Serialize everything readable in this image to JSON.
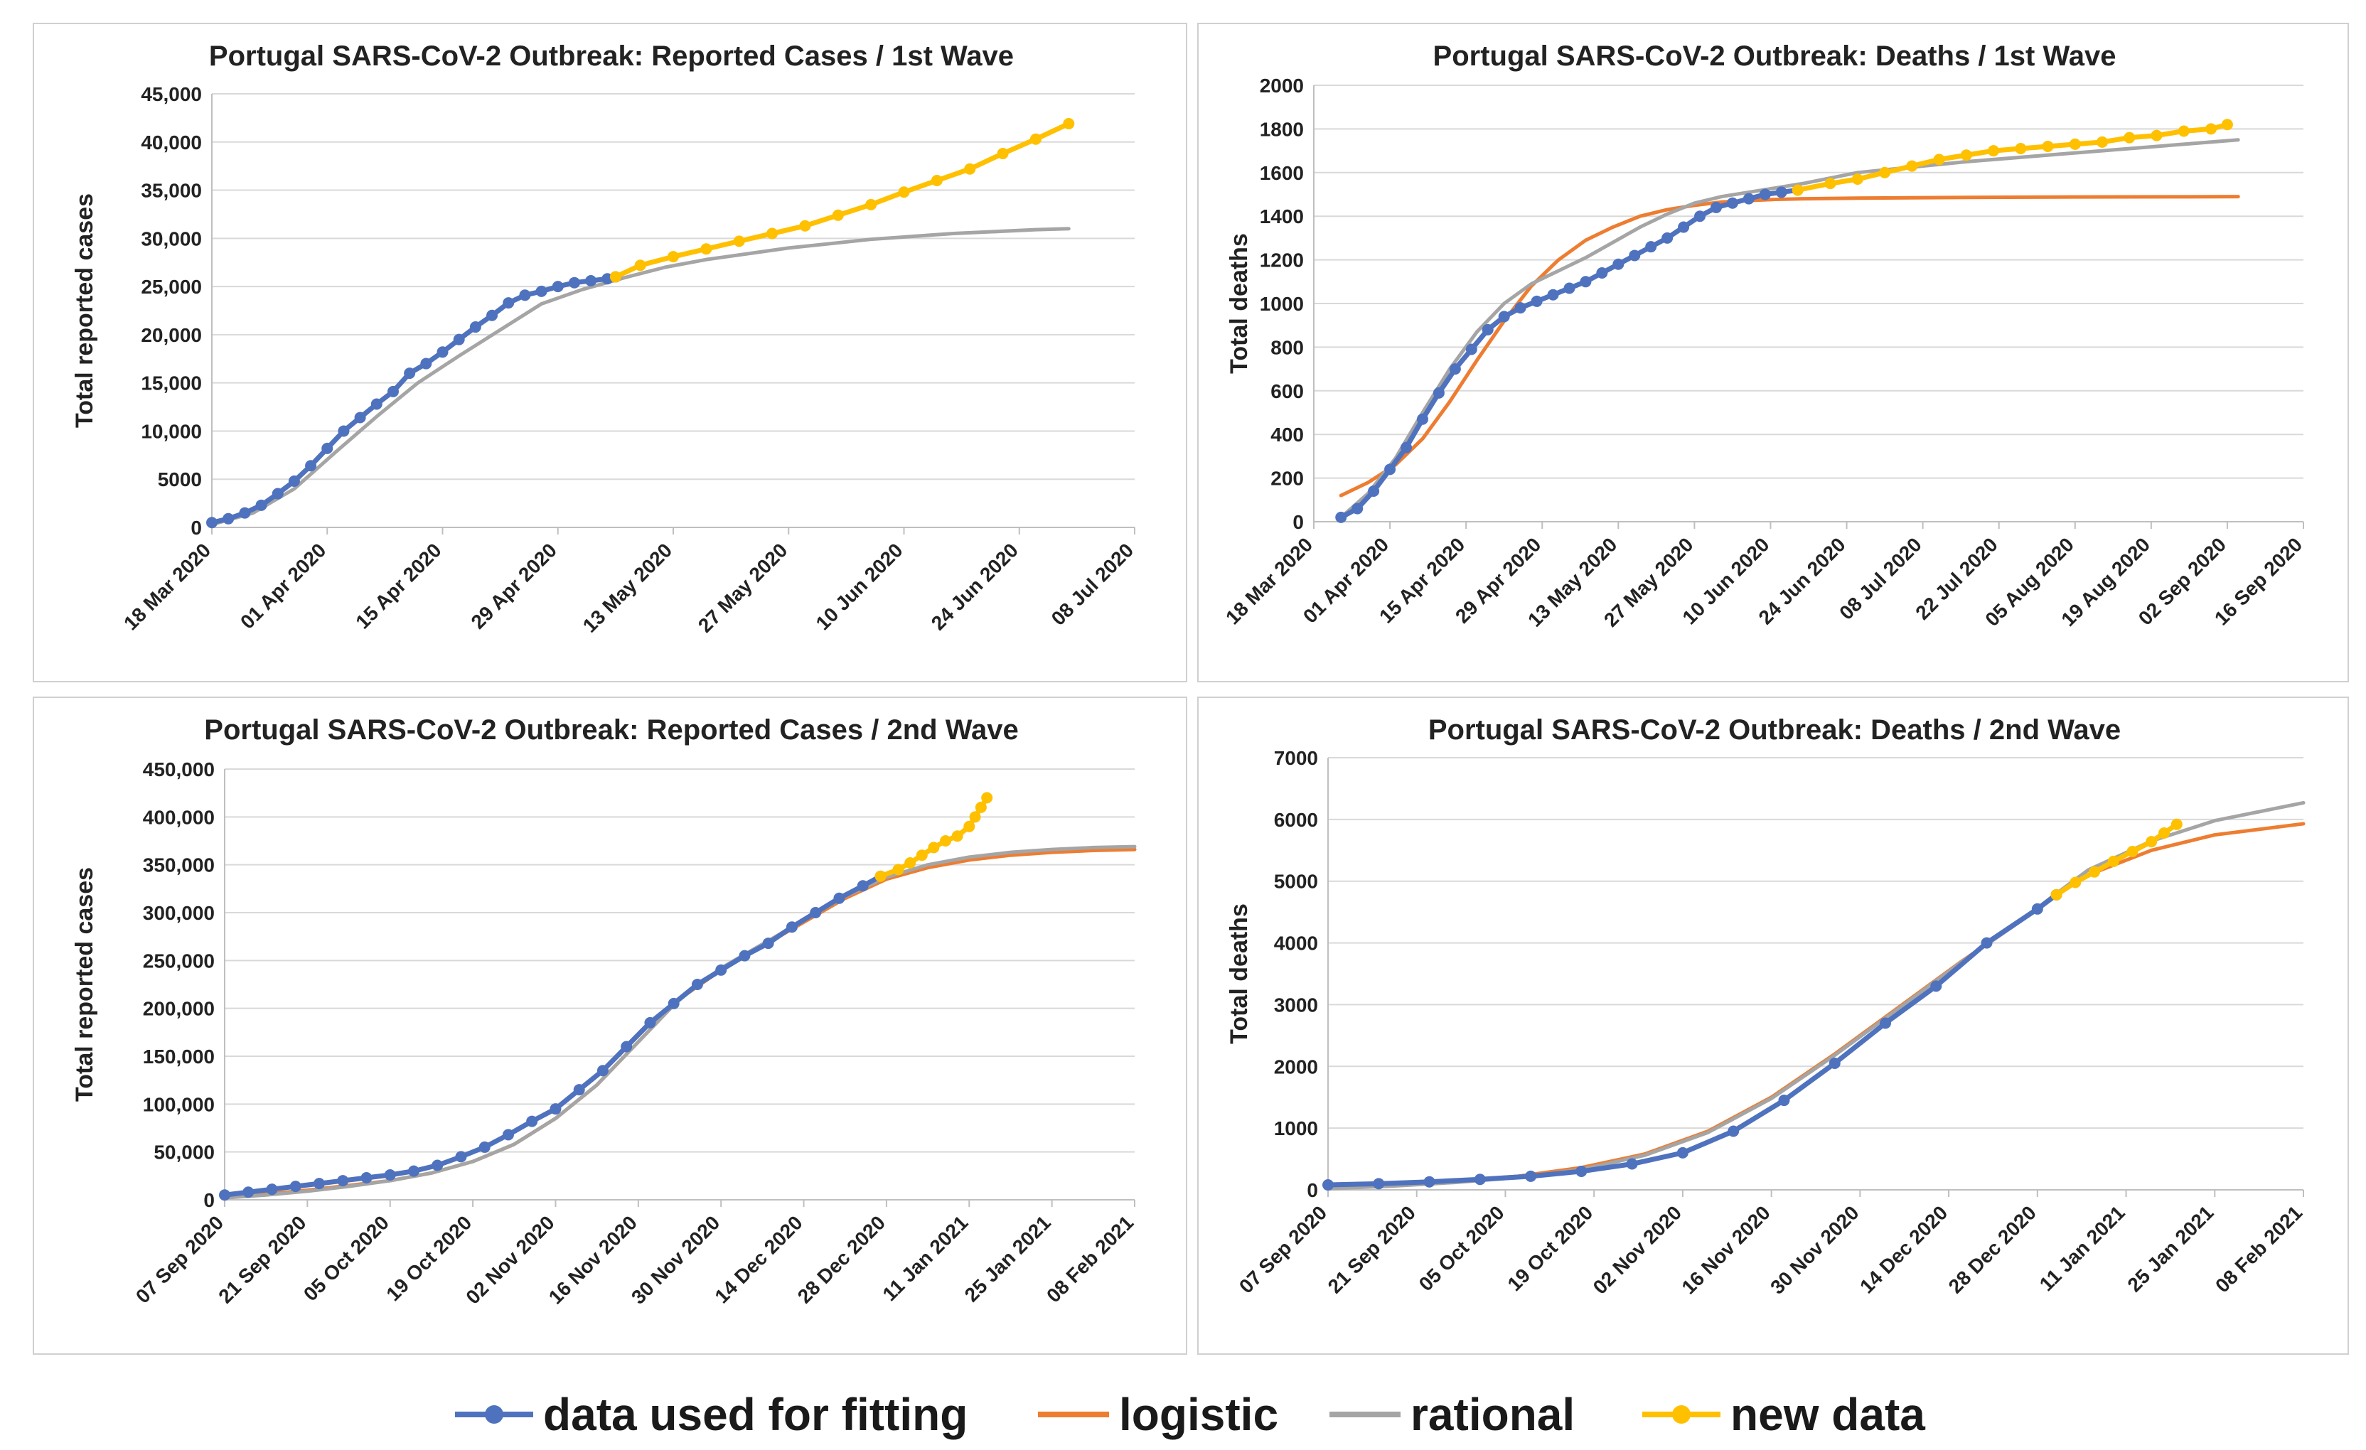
{
  "colors": {
    "fit": "#4f72be",
    "logistic": "#ed7d31",
    "rational": "#a5a5a5",
    "new": "#ffc000",
    "grid": "#d9d9d9",
    "axis": "#bfbfbf"
  },
  "legend": [
    {
      "key": "fit",
      "label": "data used for fitting",
      "marker": true
    },
    {
      "key": "logistic",
      "label": "logistic",
      "marker": false
    },
    {
      "key": "rational",
      "label": "rational",
      "marker": false
    },
    {
      "key": "new",
      "label": "new data",
      "marker": true
    }
  ],
  "chart_data": [
    {
      "type": "line",
      "title": "Portugal SARS-CoV-2 Outbreak: Reported Cases / 1st Wave",
      "ylabel": "Total reported cases",
      "ylim": [
        0,
        45000
      ],
      "yticks": [
        0,
        5000,
        10000,
        15000,
        20000,
        25000,
        30000,
        35000,
        40000,
        45000
      ],
      "ytick_labels": [
        "0",
        "5000",
        "10,000",
        "15,000",
        "20,000",
        "25,000",
        "30,000",
        "35,000",
        "40,000",
        "45,000"
      ],
      "xlim": [
        0,
        112
      ],
      "xticks": [
        0,
        14,
        28,
        42,
        56,
        70,
        84,
        98,
        112
      ],
      "xtick_labels": [
        "18 Mar 2020",
        "01 Apr 2020",
        "15 Apr 2020",
        "29 Apr 2020",
        "13 May 2020",
        "27 May 2020",
        "10 Jun 2020",
        "24 Jun 2020",
        "08 Jul 2020"
      ],
      "series": [
        {
          "name": "rational",
          "x": [
            0,
            5,
            10,
            15,
            20,
            25,
            30,
            35,
            40,
            45,
            50,
            55,
            60,
            70,
            80,
            90,
            100,
            104
          ],
          "y": [
            300,
            1500,
            4000,
            7800,
            11500,
            15000,
            17800,
            20500,
            23200,
            24700,
            25900,
            27000,
            27800,
            29000,
            29900,
            30500,
            30900,
            31000
          ]
        },
        {
          "name": "data used for fitting",
          "x": [
            0,
            2,
            4,
            6,
            8,
            10,
            12,
            14,
            16,
            18,
            20,
            22,
            24,
            26,
            28,
            30,
            32,
            34,
            36,
            38,
            40,
            42,
            44,
            46,
            48,
            49
          ],
          "y": [
            500,
            900,
            1500,
            2300,
            3500,
            4800,
            6400,
            8200,
            10000,
            11400,
            12800,
            14100,
            16000,
            17000,
            18200,
            19500,
            20800,
            22000,
            23300,
            24100,
            24500,
            25000,
            25400,
            25600,
            25800,
            26000
          ]
        },
        {
          "name": "new data",
          "x": [
            49,
            52,
            56,
            60,
            64,
            68,
            72,
            76,
            80,
            84,
            88,
            92,
            96,
            100,
            104
          ],
          "y": [
            26000,
            27200,
            28100,
            28900,
            29700,
            30500,
            31300,
            32400,
            33500,
            34800,
            36000,
            37200,
            38800,
            40300,
            41900
          ]
        }
      ]
    },
    {
      "type": "line",
      "title": "Portugal SARS-CoV-2 Outbreak: Deaths / 1st Wave",
      "ylabel": "Total deaths",
      "ylim": [
        0,
        2000
      ],
      "yticks": [
        0,
        200,
        400,
        600,
        800,
        1000,
        1200,
        1400,
        1600,
        1800,
        2000
      ],
      "ytick_labels": [
        "0",
        "200",
        "400",
        "600",
        "800",
        "1000",
        "1200",
        "1400",
        "1600",
        "1800",
        "2000"
      ],
      "xlim": [
        0,
        182
      ],
      "xticks": [
        0,
        14,
        28,
        42,
        56,
        70,
        84,
        98,
        112,
        126,
        140,
        154,
        168,
        182
      ],
      "xtick_labels": [
        "18 Mar 2020",
        "01 Apr 2020",
        "15 Apr 2020",
        "29 Apr 2020",
        "13 May 2020",
        "27 May 2020",
        "10 Jun 2020",
        "24 Jun 2020",
        "08 Jul 2020",
        "22 Jul 2020",
        "05 Aug 2020",
        "19 Aug 2020",
        "02 Sep 2020",
        "16 Sep 2020"
      ],
      "series": [
        {
          "name": "logistic",
          "x": [
            5,
            10,
            15,
            20,
            25,
            30,
            35,
            40,
            45,
            50,
            55,
            60,
            65,
            70,
            75,
            80,
            85,
            90,
            100,
            120,
            140,
            160,
            170
          ],
          "y": [
            120,
            180,
            260,
            380,
            550,
            740,
            920,
            1080,
            1200,
            1290,
            1350,
            1400,
            1430,
            1450,
            1465,
            1472,
            1477,
            1480,
            1483,
            1486,
            1488,
            1489,
            1490
          ]
        },
        {
          "name": "rational",
          "x": [
            5,
            10,
            15,
            20,
            25,
            30,
            35,
            40,
            45,
            50,
            55,
            60,
            65,
            70,
            75,
            80,
            85,
            90,
            100,
            120,
            140,
            160,
            170
          ],
          "y": [
            20,
            130,
            290,
            500,
            700,
            870,
            1000,
            1090,
            1150,
            1210,
            1280,
            1350,
            1410,
            1460,
            1490,
            1510,
            1530,
            1550,
            1600,
            1650,
            1690,
            1730,
            1750
          ]
        },
        {
          "name": "data used for fitting",
          "x": [
            5,
            8,
            11,
            14,
            17,
            20,
            23,
            26,
            29,
            32,
            35,
            38,
            41,
            44,
            47,
            50,
            53,
            56,
            59,
            62,
            65,
            68,
            71,
            74,
            77,
            80,
            83,
            86,
            89
          ],
          "y": [
            20,
            60,
            140,
            240,
            340,
            470,
            590,
            700,
            790,
            880,
            940,
            980,
            1010,
            1040,
            1070,
            1100,
            1140,
            1180,
            1220,
            1260,
            1300,
            1350,
            1400,
            1440,
            1460,
            1480,
            1500,
            1510,
            1520
          ]
        },
        {
          "name": "new data",
          "x": [
            89,
            95,
            100,
            105,
            110,
            115,
            120,
            125,
            130,
            135,
            140,
            145,
            150,
            155,
            160,
            165,
            168
          ],
          "y": [
            1520,
            1550,
            1570,
            1600,
            1630,
            1660,
            1680,
            1700,
            1710,
            1720,
            1730,
            1740,
            1760,
            1770,
            1790,
            1800,
            1820
          ]
        }
      ]
    },
    {
      "type": "line",
      "title": "Portugal SARS-CoV-2 Outbreak: Reported Cases / 2nd Wave",
      "ylabel": "Total reported cases",
      "ylim": [
        0,
        450000
      ],
      "yticks": [
        0,
        50000,
        100000,
        150000,
        200000,
        250000,
        300000,
        350000,
        400000,
        450000
      ],
      "ytick_labels": [
        "0",
        "50,000",
        "100,000",
        "150,000",
        "200,000",
        "250,000",
        "300,000",
        "350,000",
        "400,000",
        "450,000"
      ],
      "xlim": [
        0,
        154
      ],
      "xticks": [
        0,
        14,
        28,
        42,
        56,
        70,
        84,
        98,
        112,
        126,
        140,
        154
      ],
      "xtick_labels": [
        "07 Sep 2020",
        "21 Sep 2020",
        "05 Oct 2020",
        "19 Oct 2020",
        "02 Nov 2020",
        "16 Nov 2020",
        "30 Nov 2020",
        "14 Dec 2020",
        "28 Dec 2020",
        "11 Jan 2021",
        "25 Jan 2021",
        "08 Feb 2021"
      ],
      "series": [
        {
          "name": "logistic",
          "x": [
            0,
            7,
            14,
            21,
            28,
            35,
            42,
            49,
            56,
            63,
            70,
            77,
            84,
            91,
            98,
            105,
            112,
            119,
            126,
            133,
            140,
            147,
            154
          ],
          "y": [
            3000,
            6000,
            10000,
            15000,
            20000,
            28000,
            40000,
            58000,
            85000,
            120000,
            165000,
            210000,
            240000,
            265000,
            290000,
            315000,
            335000,
            347000,
            355000,
            360000,
            363000,
            365000,
            366000
          ]
        },
        {
          "name": "rational",
          "x": [
            0,
            7,
            14,
            21,
            28,
            35,
            42,
            49,
            56,
            63,
            70,
            77,
            84,
            91,
            98,
            105,
            112,
            119,
            126,
            133,
            140,
            147,
            154
          ],
          "y": [
            2000,
            5000,
            9000,
            14000,
            20000,
            28000,
            40000,
            58000,
            85000,
            120000,
            165000,
            210000,
            242000,
            267000,
            292000,
            317000,
            337000,
            350000,
            358000,
            363000,
            366000,
            368000,
            369000
          ]
        },
        {
          "name": "data used for fitting",
          "x": [
            0,
            4,
            8,
            12,
            16,
            20,
            24,
            28,
            32,
            36,
            40,
            44,
            48,
            52,
            56,
            60,
            64,
            68,
            72,
            76,
            80,
            84,
            88,
            92,
            96,
            100,
            104,
            108,
            111
          ],
          "y": [
            5000,
            8000,
            11000,
            14000,
            17000,
            20000,
            23000,
            26000,
            30000,
            36000,
            45000,
            55000,
            68000,
            82000,
            95000,
            115000,
            135000,
            160000,
            185000,
            205000,
            225000,
            240000,
            255000,
            268000,
            285000,
            300000,
            315000,
            328000,
            338000
          ]
        },
        {
          "name": "new data",
          "x": [
            111,
            114,
            116,
            118,
            120,
            122,
            124,
            126,
            127,
            128,
            129
          ],
          "y": [
            338000,
            345000,
            352000,
            360000,
            368000,
            375000,
            380000,
            390000,
            400000,
            410000,
            420000
          ]
        }
      ]
    },
    {
      "type": "line",
      "title": "Portugal SARS-CoV-2 Outbreak: Deaths / 2nd Wave",
      "ylabel": "Total deaths",
      "ylim": [
        0,
        7000
      ],
      "yticks": [
        0,
        1000,
        2000,
        3000,
        4000,
        5000,
        6000,
        7000
      ],
      "ytick_labels": [
        "0",
        "1000",
        "2000",
        "3000",
        "4000",
        "5000",
        "6000",
        "7000"
      ],
      "xlim": [
        0,
        154
      ],
      "xticks": [
        0,
        14,
        28,
        42,
        56,
        70,
        84,
        98,
        112,
        126,
        140,
        154
      ],
      "xtick_labels": [
        "07 Sep 2020",
        "21 Sep 2020",
        "05 Oct 2020",
        "19 Oct 2020",
        "02 Nov 2020",
        "16 Nov 2020",
        "30 Nov 2020",
        "14 Dec 2020",
        "28 Dec 2020",
        "11 Jan 2021",
        "25 Jan 2021",
        "08 Feb 2021"
      ],
      "series": [
        {
          "name": "logistic",
          "x": [
            0,
            10,
            20,
            30,
            40,
            50,
            60,
            70,
            80,
            90,
            100,
            110,
            115,
            120,
            130,
            140,
            154
          ],
          "y": [
            50,
            90,
            140,
            220,
            360,
            580,
            950,
            1500,
            2200,
            2950,
            3700,
            4400,
            4800,
            5100,
            5500,
            5750,
            5930
          ]
        },
        {
          "name": "rational",
          "x": [
            0,
            10,
            20,
            30,
            40,
            50,
            60,
            70,
            80,
            90,
            100,
            110,
            115,
            120,
            130,
            140,
            154
          ],
          "y": [
            20,
            60,
            120,
            200,
            330,
            560,
            930,
            1480,
            2180,
            2930,
            3690,
            4400,
            4800,
            5180,
            5650,
            5980,
            6270
          ]
        },
        {
          "name": "data used for fitting",
          "x": [
            0,
            8,
            16,
            24,
            32,
            40,
            48,
            56,
            64,
            72,
            80,
            88,
            96,
            104,
            112,
            115
          ],
          "y": [
            80,
            100,
            130,
            170,
            220,
            300,
            420,
            600,
            950,
            1450,
            2050,
            2700,
            3300,
            4000,
            4550,
            4780
          ]
        },
        {
          "name": "new data",
          "x": [
            115,
            118,
            121,
            124,
            127,
            130,
            132,
            134
          ],
          "y": [
            4780,
            4980,
            5150,
            5320,
            5480,
            5640,
            5780,
            5920
          ]
        }
      ]
    }
  ]
}
